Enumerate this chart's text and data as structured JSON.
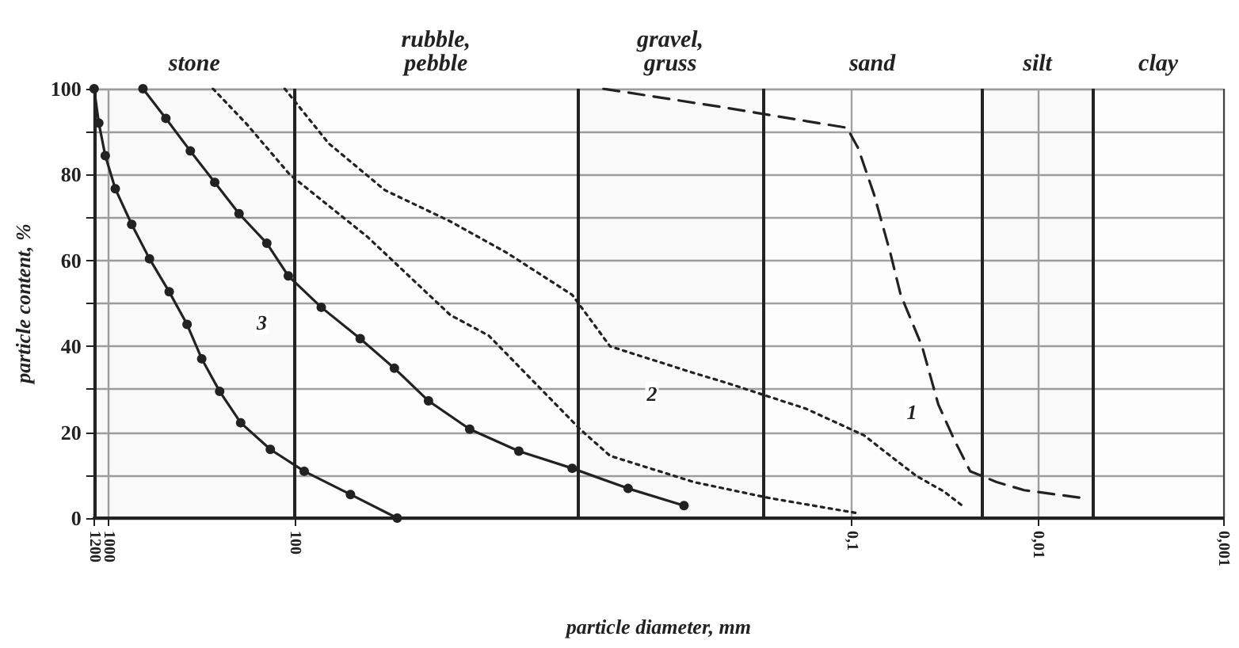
{
  "chart_data": {
    "type": "line",
    "xlabel": "particle diameter, mm",
    "ylabel": "particle content, %",
    "log": "x",
    "grid": true,
    "xlim": [
      1200,
      0.001
    ],
    "xticks": [
      1200,
      1000,
      100,
      {
        "value": 0.1,
        "label": "0,1"
      },
      {
        "value": 0.01,
        "label": "0,01"
      },
      {
        "value": 0.001,
        "label": "0,001"
      }
    ],
    "ylim": [
      0,
      100
    ],
    "yticks": [
      0,
      {
        "value": 10,
        "label": null
      },
      20,
      {
        "value": 30,
        "label": null
      },
      40,
      {
        "value": 50,
        "label": null
      },
      60,
      {
        "value": 70,
        "label": null
      },
      80,
      {
        "value": 90,
        "label": null
      },
      100
    ],
    "bands": [
      {
        "axis": "x",
        "from": 1200,
        "to": 100,
        "label": "stone",
        "color": "#f4f4f4"
      },
      {
        "axis": "x",
        "from": 100,
        "to": 3,
        "label": "rubble,\npebble",
        "color": "#fbfbfb"
      },
      {
        "axis": "x",
        "from": 3,
        "to": 0.3,
        "label": "gravel,\ngruss",
        "color": "#f4f4f4"
      },
      {
        "axis": "x",
        "from": 0.3,
        "to": 0.02,
        "label": "sand",
        "color": "#fbfbfb"
      },
      {
        "axis": "x",
        "from": 0.02,
        "to": 0.005,
        "label": "silt",
        "color": "#f4f4f4"
      },
      {
        "axis": "x",
        "from": 0.005,
        "to": 0.001,
        "label": "clay",
        "color": "#fbfbfb"
      }
    ],
    "ref_lines": [
      {
        "axis": "x",
        "value": 100
      },
      {
        "axis": "x",
        "value": 3
      },
      {
        "axis": "x",
        "value": 0.3
      },
      {
        "axis": "x",
        "value": 0.02
      },
      {
        "axis": "x",
        "value": 0.005
      }
    ],
    "series": [
      {
        "color": "#222222",
        "marker": "circle",
        "line_style": "solid",
        "x": [
          1200,
          1132,
          1045,
          923,
          753,
          604,
          473,
          379,
          316,
          253,
          195,
          135,
          88.7,
          50,
          28
        ],
        "values": [
          100,
          92,
          84.4,
          76.7,
          68.4,
          60.4,
          52.7,
          45.1,
          37.1,
          29.5,
          22.2,
          16,
          10.9,
          5.5,
          0
        ]
      },
      {
        "color": "#222222",
        "marker": "circle",
        "line_style": "solid",
        "x": [
          655,
          493,
          364,
          269,
          199,
          141,
          108,
          71.8,
          44.3,
          29,
          19,
          11.4,
          6.2,
          3.2,
          1.6,
          0.8
        ],
        "values": [
          100,
          93.1,
          85.5,
          78.2,
          70.9,
          64,
          56.4,
          49.1,
          41.8,
          34.9,
          27.3,
          20.7,
          15.6,
          11.6,
          6.9,
          2.9
        ]
      },
      {
        "color": "#222222",
        "marker": "none",
        "line_style": "dotted",
        "x": [
          275,
          183,
          106,
          40.5,
          14.5,
          9,
          2.9,
          2,
          0.71,
          0.28,
          0.092
        ],
        "values": [
          100,
          92,
          80,
          65.5,
          47.3,
          42.5,
          20.7,
          14.5,
          8.4,
          4.7,
          1.1
        ]
      },
      {
        "color": "#222222",
        "marker": "none",
        "line_style": "dotted",
        "x": [
          113,
          65.6,
          32.7,
          14.5,
          7.2,
          3.2,
          2,
          0.71,
          0.48,
          0.177,
          0.086,
          0.062,
          0.0448,
          0.0319,
          0.0247
        ],
        "values": [
          100,
          87.3,
          76.4,
          69.1,
          61.8,
          52,
          40,
          33.8,
          31.6,
          25.5,
          19.3,
          14.5,
          9.8,
          6.2,
          2.5
        ]
      },
      {
        "color": "#222222",
        "marker": "none",
        "line_style": "dashed",
        "x": [
          2.17,
          0.48,
          0.106,
          0.0924,
          0.0757,
          0.062,
          0.0545,
          0.0418,
          0.0342,
          0.028,
          0.023,
          0.0166,
          0.0118,
          0.00577
        ],
        "values": [
          100,
          95.6,
          90.9,
          86.2,
          75.3,
          61.8,
          52,
          40,
          26.5,
          18.2,
          10.9,
          8.4,
          6.5,
          4.7
        ]
      }
    ],
    "annotations": [
      {
        "text": "3",
        "x": 150,
        "y": 45.5
      },
      {
        "text": "2",
        "x": 1.19,
        "y": 29
      },
      {
        "text": "1",
        "x": 0.0475,
        "y": 24.7
      }
    ]
  }
}
